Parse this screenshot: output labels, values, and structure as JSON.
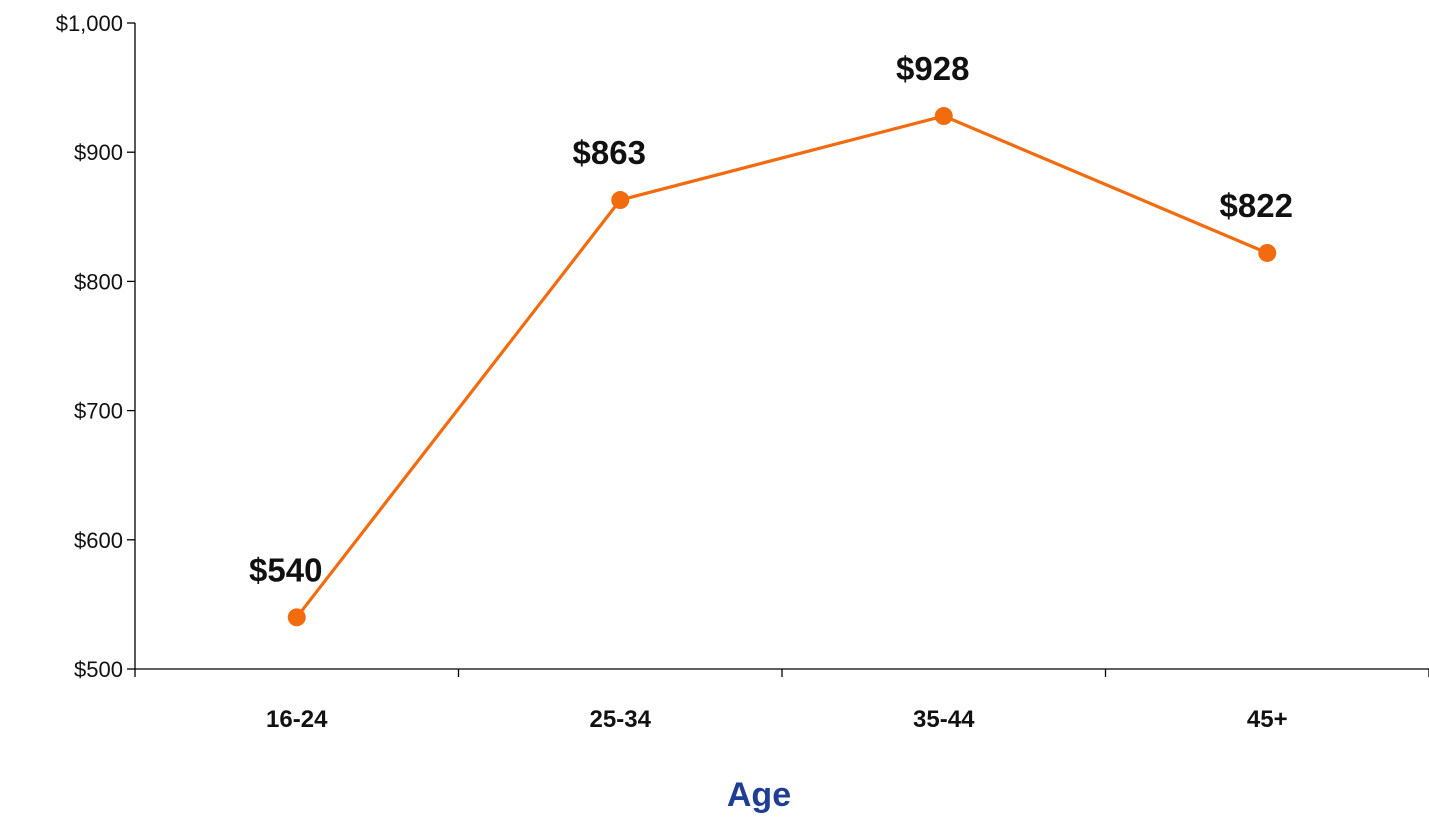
{
  "chart_data": {
    "type": "line",
    "title": "",
    "xlabel": "Age",
    "ylabel": "",
    "categories": [
      "16-24",
      "25-34",
      "35-44",
      "45+"
    ],
    "series": [
      {
        "values": [
          540,
          863,
          928,
          822
        ],
        "color": "#F26B0F"
      }
    ],
    "data_labels": [
      "$540",
      "$863",
      "$928",
      "$822"
    ],
    "ylim": [
      500,
      1000
    ],
    "yticks": [
      500,
      600,
      700,
      800,
      900,
      1000
    ],
    "ytick_labels": [
      "$500",
      "$600",
      "$700",
      "$800",
      "$900",
      "$1,000"
    ],
    "grid": false,
    "legend": "none",
    "colors": {
      "line": "#F26B0F",
      "axis": "#000000",
      "xlabel": "#1F3E93"
    }
  }
}
